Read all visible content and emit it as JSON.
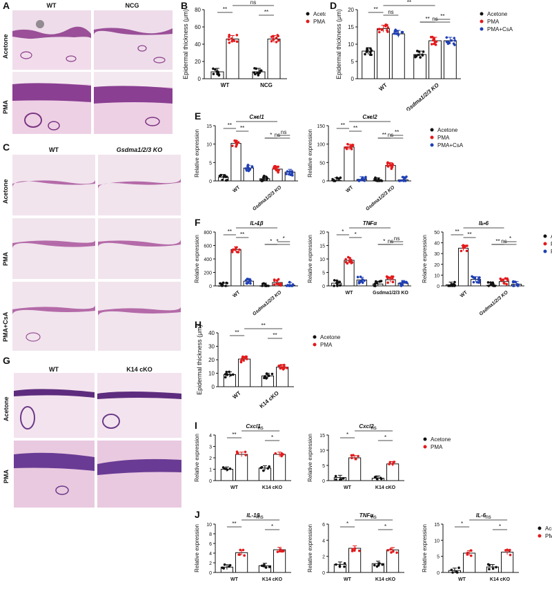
{
  "panels": {
    "A": {
      "label": "A",
      "cols": [
        "WT",
        "NCG"
      ],
      "rows": [
        "Acetone",
        "PMA"
      ]
    },
    "C": {
      "label": "C",
      "cols": [
        "WT",
        "Gsdma1/2/3 KO"
      ],
      "rows": [
        "Acetone",
        "PMA",
        "PMA+CsA"
      ]
    },
    "G": {
      "label": "G",
      "cols": [
        "WT",
        "K14 cKO"
      ],
      "rows": [
        "Acetone",
        "PMA"
      ]
    },
    "B": {
      "label": "B"
    },
    "D": {
      "label": "D"
    },
    "E": {
      "label": "E"
    },
    "F": {
      "label": "F"
    },
    "H": {
      "label": "H"
    },
    "I": {
      "label": "I"
    },
    "J": {
      "label": "J"
    }
  },
  "colors": {
    "acetone": "#111111",
    "pma": "#e31a1c",
    "csa": "#1f3fb4",
    "tissue_top": "#c57fb8",
    "tissue_bg": "#ecd6e6"
  },
  "chart_data": [
    {
      "id": "B",
      "type": "bar",
      "ylabel": "Epidermal thickness (μm)",
      "ylim": [
        0,
        80
      ],
      "yticks": [
        0,
        20,
        40,
        60,
        80
      ],
      "groups": [
        "WT",
        "NCG"
      ],
      "series": [
        {
          "name": "Acetone",
          "values": [
            8,
            8
          ]
        },
        {
          "name": "PMA",
          "values": [
            46,
            46
          ]
        }
      ],
      "annotations": [
        "**",
        "**",
        "ns"
      ],
      "legend_position": "right"
    },
    {
      "id": "D",
      "type": "bar",
      "ylabel": "Epidermal thickness (μm)",
      "ylim": [
        0,
        20
      ],
      "yticks": [
        0,
        5,
        10,
        15,
        20
      ],
      "groups": [
        "WT",
        "Gsdma1/2/3 KO"
      ],
      "series": [
        {
          "name": "Acetone",
          "values": [
            8,
            7
          ]
        },
        {
          "name": "PMA",
          "values": [
            14.5,
            11
          ]
        },
        {
          "name": "PMA+CsA",
          "values": [
            13,
            11
          ]
        }
      ],
      "annotations": [
        "**",
        "ns",
        "**",
        "**",
        "**",
        "ns"
      ],
      "legend_position": "right"
    },
    {
      "id": "E1",
      "type": "bar",
      "title": "Cxcl1",
      "ylabel": "Relative expression",
      "ylim": [
        0,
        15
      ],
      "yticks": [
        0,
        5,
        10,
        15
      ],
      "groups": [
        "WT",
        "Gsdma1/2/3 KO"
      ],
      "series": [
        {
          "name": "Acetone",
          "values": [
            1,
            0.6
          ]
        },
        {
          "name": "PMA",
          "values": [
            10.2,
            3.2
          ]
        },
        {
          "name": "PMA+CsA",
          "values": [
            3.5,
            2.4
          ]
        }
      ],
      "annotations": [
        "**",
        "**",
        "**",
        "*",
        "ns",
        "ns"
      ]
    },
    {
      "id": "E2",
      "type": "bar",
      "title": "Cxcl2",
      "ylabel": "Relative expression",
      "ylim": [
        0,
        150
      ],
      "yticks": [
        0,
        50,
        100,
        150
      ],
      "groups": [
        "WT",
        "Gsdma1/2/3 KO"
      ],
      "series": [
        {
          "name": "Acetone",
          "values": [
            1,
            1
          ]
        },
        {
          "name": "PMA",
          "values": [
            92,
            42
          ]
        },
        {
          "name": "PMA+CsA",
          "values": [
            4,
            3
          ]
        }
      ],
      "annotations": [
        "**",
        "**",
        "**",
        "**",
        "**",
        "ns"
      ],
      "legend_position": "right"
    },
    {
      "id": "F1",
      "type": "bar",
      "title": "IL-1β",
      "ylabel": "Relative expression",
      "ylim": [
        0,
        800
      ],
      "yticks": [
        0,
        200,
        400,
        600,
        800
      ],
      "groups": [
        "WT",
        "Gsdma1/2/3 KO"
      ],
      "series": [
        {
          "name": "Acetone",
          "values": [
            1,
            1
          ]
        },
        {
          "name": "PMA",
          "values": [
            540,
            50
          ]
        },
        {
          "name": "PMA+CsA",
          "values": [
            70,
            10
          ]
        }
      ],
      "annotations": [
        "**",
        "**",
        "**",
        "*",
        "*",
        "*"
      ]
    },
    {
      "id": "F2",
      "type": "bar",
      "title": "TNFα",
      "ylabel": "Relative expression",
      "ylim": [
        0,
        20
      ],
      "yticks": [
        0,
        5,
        10,
        15,
        20
      ],
      "groups": [
        "WT",
        "Gsdma1/2/3 KO"
      ],
      "series": [
        {
          "name": "Acetone",
          "values": [
            1,
            0.7
          ]
        },
        {
          "name": "PMA",
          "values": [
            9.5,
            2.3
          ]
        },
        {
          "name": "PMA+CsA",
          "values": [
            2.2,
            1
          ]
        }
      ],
      "annotations": [
        "*",
        "*",
        "*",
        "*",
        "ns",
        "ns"
      ]
    },
    {
      "id": "F3",
      "type": "bar",
      "title": "IL-6",
      "ylabel": "Relative expression",
      "ylim": [
        0,
        50
      ],
      "yticks": [
        0,
        10,
        20,
        30,
        40,
        50
      ],
      "groups": [
        "WT",
        "Gsdma1/2/3 KO"
      ],
      "series": [
        {
          "name": "Acetone",
          "values": [
            1,
            0.5
          ]
        },
        {
          "name": "PMA",
          "values": [
            35,
            4
          ]
        },
        {
          "name": "PMA+CsA",
          "values": [
            6,
            1.5
          ]
        }
      ],
      "annotations": [
        "**",
        "**",
        "**",
        "**",
        "*",
        "ns"
      ],
      "legend_position": "right"
    },
    {
      "id": "H",
      "type": "bar",
      "ylabel": "Epidermal thickness (μm)",
      "ylim": [
        0,
        40
      ],
      "yticks": [
        0,
        10,
        20,
        30,
        40
      ],
      "groups": [
        "WT",
        "K14 cKO"
      ],
      "series": [
        {
          "name": "Acetone",
          "values": [
            9,
            8
          ]
        },
        {
          "name": "PMA",
          "values": [
            20.5,
            14.5
          ]
        }
      ],
      "annotations": [
        "**",
        "**",
        "**"
      ],
      "legend_position": "right"
    },
    {
      "id": "I1",
      "type": "bar",
      "title": "Cxcl1",
      "ylabel": "Relative expression",
      "ylim": [
        0,
        4
      ],
      "yticks": [
        0,
        1,
        2,
        3,
        4
      ],
      "groups": [
        "WT",
        "K14 cKO"
      ],
      "series": [
        {
          "name": "Acetone",
          "values": [
            1,
            1.1
          ]
        },
        {
          "name": "PMA",
          "values": [
            2.3,
            2.3
          ]
        }
      ],
      "annotations": [
        "**",
        "*",
        "ns"
      ]
    },
    {
      "id": "I2",
      "type": "bar",
      "title": "Cxcl2",
      "ylabel": "Relative expression",
      "ylim": [
        0,
        15
      ],
      "yticks": [
        0,
        5,
        10,
        15
      ],
      "groups": [
        "WT",
        "K14 cKO"
      ],
      "series": [
        {
          "name": "Acetone",
          "values": [
            1,
            0.8
          ]
        },
        {
          "name": "PMA",
          "values": [
            7.5,
            5.5
          ]
        }
      ],
      "annotations": [
        "*",
        "*",
        "ns"
      ],
      "legend_position": "right"
    },
    {
      "id": "J1",
      "type": "bar",
      "title": "IL-1β",
      "ylabel": "Relative expression",
      "ylim": [
        0,
        10
      ],
      "yticks": [
        0,
        2,
        4,
        6,
        8,
        10
      ],
      "groups": [
        "WT",
        "K14 cKO"
      ],
      "series": [
        {
          "name": "Acetone",
          "values": [
            1.1,
            1.4
          ]
        },
        {
          "name": "PMA",
          "values": [
            4.1,
            4.7
          ]
        }
      ],
      "annotations": [
        "**",
        "*",
        "ns"
      ]
    },
    {
      "id": "J2",
      "type": "bar",
      "title": "TNFα",
      "ylabel": "Relative expression",
      "ylim": [
        0,
        6
      ],
      "yticks": [
        0,
        2,
        4,
        6
      ],
      "groups": [
        "WT",
        "K14 cKO"
      ],
      "series": [
        {
          "name": "Acetone",
          "values": [
            1,
            1.1
          ]
        },
        {
          "name": "PMA",
          "values": [
            3,
            2.8
          ]
        }
      ],
      "annotations": [
        "*",
        "*",
        "ns"
      ]
    },
    {
      "id": "J3",
      "type": "bar",
      "title": "IL-6",
      "ylabel": "Relative expression",
      "ylim": [
        0,
        15
      ],
      "yticks": [
        0,
        5,
        10,
        15
      ],
      "groups": [
        "WT",
        "K14 cKO"
      ],
      "series": [
        {
          "name": "Acetone",
          "values": [
            0.6,
            1.7
          ]
        },
        {
          "name": "PMA",
          "values": [
            6,
            6.3
          ]
        }
      ],
      "annotations": [
        "*",
        "*",
        "ns"
      ],
      "legend_position": "right"
    }
  ]
}
